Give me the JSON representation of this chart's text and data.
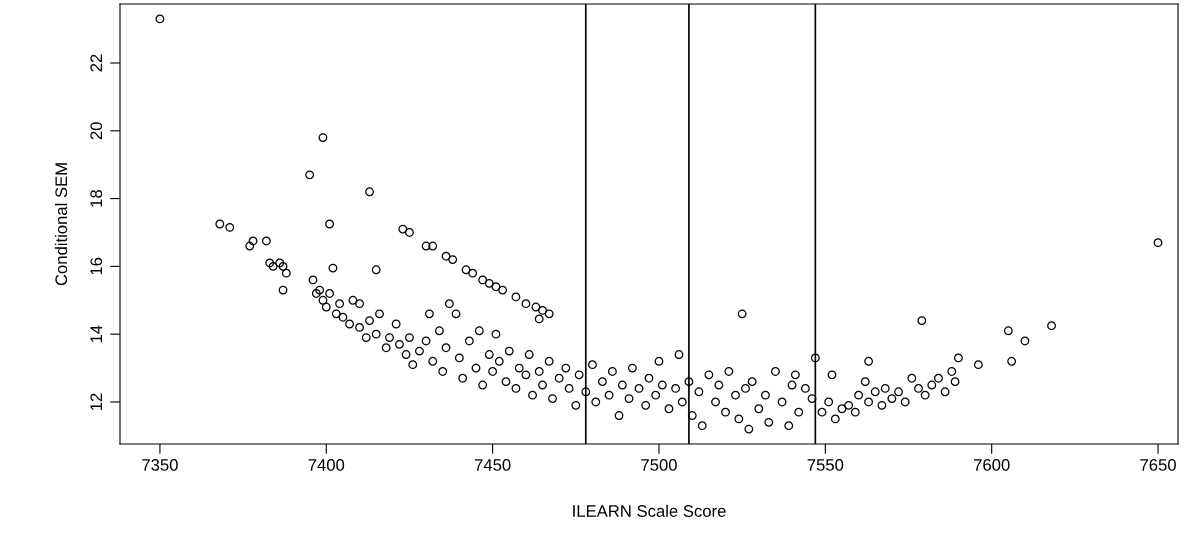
{
  "chart_data": {
    "type": "scatter",
    "xlabel": "ILEARN Scale Score",
    "ylabel": "Conditional SEM",
    "marker": "circle",
    "grid": false,
    "legend": false,
    "xlim": [
      7338,
      7656
    ],
    "ylim": [
      10.76,
      23.74
    ],
    "xticks": [
      7350,
      7400,
      7450,
      7500,
      7550,
      7600,
      7650
    ],
    "yticks": [
      12,
      14,
      16,
      18,
      20,
      22
    ],
    "ref_lines": [
      {
        "axis": "x",
        "value": 7478,
        "color": "#000000"
      },
      {
        "axis": "x",
        "value": 7509,
        "color": "#000000"
      },
      {
        "axis": "x",
        "value": 7547,
        "color": "#000000"
      }
    ],
    "series": [
      {
        "color": "#000000",
        "x": [
          7350,
          7368,
          7371,
          7377,
          7378,
          7382,
          7383,
          7384,
          7386,
          7387,
          7388,
          7387,
          7395,
          7399,
          7401,
          7413,
          7415,
          7402,
          7423,
          7425,
          7430,
          7432,
          7436,
          7438,
          7442,
          7444,
          7447,
          7449,
          7451,
          7453,
          7457,
          7460,
          7463,
          7465,
          7467,
          7464,
          7525,
          7579,
          7605,
          7618,
          7650,
          7610,
          7606,
          7590,
          7596,
          7563,
          7396,
          7397,
          7398,
          7399,
          7400,
          7401,
          7403,
          7404,
          7405,
          7407,
          7408,
          7410,
          7410,
          7412,
          7413,
          7415,
          7416,
          7418,
          7419,
          7421,
          7422,
          7424,
          7425,
          7426,
          7428,
          7430,
          7431,
          7432,
          7434,
          7435,
          7436,
          7437,
          7439,
          7440,
          7441,
          7443,
          7445,
          7446,
          7447,
          7449,
          7450,
          7451,
          7452,
          7454,
          7455,
          7457,
          7458,
          7460,
          7461,
          7462,
          7464,
          7465,
          7467,
          7468,
          7470,
          7472,
          7473,
          7475,
          7476,
          7478,
          7480,
          7481,
          7483,
          7485,
          7486,
          7488,
          7489,
          7491,
          7492,
          7494,
          7496,
          7497,
          7499,
          7500,
          7501,
          7503,
          7505,
          7506,
          7507,
          7509,
          7510,
          7512,
          7513,
          7515,
          7517,
          7518,
          7520,
          7521,
          7523,
          7524,
          7526,
          7527,
          7528,
          7530,
          7532,
          7533,
          7535,
          7537,
          7539,
          7540,
          7541,
          7542,
          7544,
          7546,
          7547,
          7549,
          7551,
          7552,
          7553,
          7555,
          7557,
          7559,
          7560,
          7562,
          7563,
          7565,
          7567,
          7568,
          7570,
          7572,
          7574,
          7576,
          7578,
          7580,
          7582,
          7584,
          7586,
          7588,
          7589
        ],
        "values": [
          23.3,
          17.25,
          17.15,
          16.6,
          16.75,
          16.75,
          16.1,
          16.0,
          16.1,
          16.0,
          15.8,
          15.3,
          18.7,
          19.8,
          17.25,
          18.2,
          15.9,
          15.95,
          17.1,
          17.0,
          16.6,
          16.6,
          16.3,
          16.2,
          15.9,
          15.8,
          15.6,
          15.5,
          15.4,
          15.3,
          15.1,
          14.9,
          14.8,
          14.7,
          14.6,
          14.45,
          14.6,
          14.4,
          14.1,
          14.25,
          16.7,
          13.8,
          13.2,
          13.3,
          13.1,
          13.2,
          15.6,
          15.2,
          15.3,
          15.0,
          14.8,
          15.2,
          14.6,
          14.9,
          14.5,
          14.3,
          15.0,
          14.9,
          14.2,
          13.9,
          14.4,
          14.0,
          14.6,
          13.6,
          13.9,
          14.3,
          13.7,
          13.4,
          13.9,
          13.1,
          13.5,
          13.8,
          14.6,
          13.2,
          14.1,
          12.9,
          13.6,
          14.9,
          14.6,
          13.3,
          12.7,
          13.8,
          13.0,
          14.1,
          12.5,
          13.4,
          12.9,
          14.0,
          13.2,
          12.6,
          13.5,
          12.4,
          13.0,
          12.8,
          13.4,
          12.2,
          12.9,
          12.5,
          13.2,
          12.1,
          12.7,
          13.0,
          12.4,
          11.9,
          12.8,
          12.3,
          13.1,
          12.0,
          12.6,
          12.2,
          12.9,
          11.6,
          12.5,
          12.1,
          13.0,
          12.4,
          11.9,
          12.7,
          12.2,
          13.2,
          12.5,
          11.8,
          12.4,
          13.4,
          12.0,
          12.6,
          11.6,
          12.3,
          11.3,
          12.8,
          12.0,
          12.5,
          11.7,
          12.9,
          12.2,
          11.5,
          12.4,
          11.2,
          12.6,
          11.8,
          12.2,
          11.4,
          12.9,
          12.0,
          11.3,
          12.5,
          12.8,
          11.7,
          12.4,
          12.1,
          13.3,
          11.7,
          12.0,
          12.8,
          11.5,
          11.8,
          11.9,
          11.7,
          12.2,
          12.6,
          12.0,
          12.3,
          11.9,
          12.4,
          12.1,
          12.3,
          12.0,
          12.7,
          12.4,
          12.2,
          12.5,
          12.7,
          12.3,
          12.9,
          12.6
        ]
      }
    ]
  }
}
